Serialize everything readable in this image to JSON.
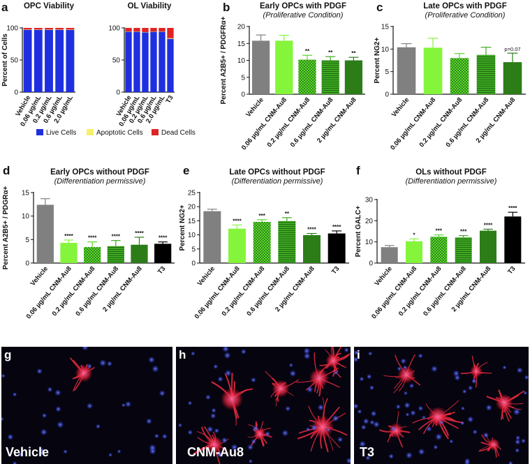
{
  "panels": {
    "a": {
      "letter": "a",
      "legend": [
        {
          "label": "Live Cells",
          "color": "#1f2fe0"
        },
        {
          "label": "Apoptotic Cells",
          "color": "#f7f06a"
        },
        {
          "label": "Dead Cells",
          "color": "#e02424"
        }
      ]
    },
    "b": {
      "letter": "b"
    },
    "c": {
      "letter": "c"
    },
    "d": {
      "letter": "d"
    },
    "e": {
      "letter": "e"
    },
    "f": {
      "letter": "f"
    }
  },
  "chart_data": [
    {
      "id": "a1",
      "type": "bar",
      "stacked": true,
      "title": "OPC Viability",
      "ylabel": "Percent of Cells",
      "ylim": [
        0,
        100
      ],
      "yticks": [
        0,
        50,
        100
      ],
      "categories": [
        "Vehicle",
        "0.06 µg/mL",
        "0.2 µg/mL",
        "0.6 µg/mL",
        "2.0 µg/mL"
      ],
      "series": [
        {
          "name": "Live Cells",
          "values": [
            97,
            97,
            97,
            97,
            97
          ]
        },
        {
          "name": "Apoptotic Cells",
          "values": [
            0.5,
            0.5,
            0.5,
            0.5,
            0.5
          ]
        },
        {
          "name": "Dead Cells",
          "values": [
            2.5,
            2.5,
            2.5,
            2.5,
            2.5
          ]
        }
      ]
    },
    {
      "id": "a2",
      "type": "bar",
      "stacked": true,
      "title": "OL Viability",
      "ylabel": "",
      "ylim": [
        0,
        100
      ],
      "yticks": [
        0,
        50,
        100
      ],
      "categories": [
        "Vehicle",
        "0.06 µg/mL",
        "0.2 µg/mL",
        "0.6 µg/mL",
        "2.0 µg/mL",
        "T3"
      ],
      "series": [
        {
          "name": "Live Cells",
          "values": [
            94,
            94,
            93,
            94,
            94,
            83
          ]
        },
        {
          "name": "Apoptotic Cells",
          "values": [
            0.5,
            0.5,
            0.5,
            0.5,
            0.5,
            1
          ]
        },
        {
          "name": "Dead Cells",
          "values": [
            5.5,
            5.5,
            6.5,
            5.5,
            5.5,
            16
          ]
        }
      ]
    },
    {
      "id": "b",
      "type": "bar",
      "title": "Early OPCs with PDGF",
      "subtitle": "(Proliferative Condition)",
      "ylabel": "Percent A2B5+ / PDGFRα+",
      "ylim": [
        0,
        20
      ],
      "yticks": [
        0,
        5,
        10,
        15,
        20
      ],
      "categories": [
        "Vehicle",
        "0.06 µg/mL CNM-Au8",
        "0.2 µg/mL CNM-Au8",
        "0.6 µg/mL CNM-Au8",
        "2 µg/mL CNM-Au8"
      ],
      "values": [
        15.8,
        15.8,
        10.2,
        10.0,
        10.0
      ],
      "errors": [
        1.7,
        1.6,
        1.3,
        1.1,
        0.9
      ],
      "significance": [
        "",
        "",
        "**",
        "**",
        "**"
      ],
      "colors": [
        "#808080",
        "#84f53a",
        "#5bd62b",
        "#3ea821",
        "#2c7d18"
      ],
      "patterns": [
        "solid",
        "solid",
        "check",
        "hstripe",
        "solid"
      ]
    },
    {
      "id": "c",
      "type": "bar",
      "title": "Late OPCs with PDGF",
      "subtitle": "(Proliferative Condition)",
      "ylabel": "Percent NG2+",
      "ylim": [
        0,
        15
      ],
      "yticks": [
        0,
        5,
        10,
        15
      ],
      "categories": [
        "Vehicle",
        "0.06 µg/mL CNM-Au8",
        "0.2 µg/mL CNM-Au8",
        "0.6 µg/mL CNM-Au8",
        "2 µg/mL CNM-Au8"
      ],
      "values": [
        10.4,
        10.3,
        8.0,
        8.7,
        7.1
      ],
      "errors": [
        0.8,
        2.1,
        1.0,
        1.7,
        2.0
      ],
      "significance": [
        "",
        "",
        "",
        "",
        "p=0.07"
      ],
      "colors": [
        "#808080",
        "#84f53a",
        "#5bd62b",
        "#3ea821",
        "#2c7d18"
      ],
      "patterns": [
        "solid",
        "solid",
        "check",
        "hstripe",
        "solid"
      ]
    },
    {
      "id": "d",
      "type": "bar",
      "title": "Early OPCs without PDGF",
      "subtitle": "(Differentiation permissive)",
      "ylabel": "Percent A2B5+ / PDGRα+",
      "ylim": [
        0,
        15
      ],
      "yticks": [
        0,
        5,
        10,
        15
      ],
      "categories": [
        "Vehicle",
        "0.06 µg/mL CNM-Au8",
        "0.2 µg/mL CNM-Au8",
        "0.6 µg/mL CNM-Au8",
        "2 µg/mL CNM-Au8",
        "T3"
      ],
      "values": [
        12.4,
        4.3,
        3.4,
        3.6,
        3.9,
        4.1
      ],
      "errors": [
        1.3,
        0.6,
        1.1,
        1.2,
        1.6,
        0.4
      ],
      "significance": [
        "",
        "****",
        "****",
        "****",
        "****",
        "****"
      ],
      "colors": [
        "#808080",
        "#84f53a",
        "#5bd62b",
        "#3ea821",
        "#2c7d18",
        "#000000"
      ],
      "patterns": [
        "solid",
        "solid",
        "check",
        "hstripe",
        "solid",
        "solid"
      ]
    },
    {
      "id": "e",
      "type": "bar",
      "title": "Late OPCs without PDGF",
      "subtitle": "(Differentiation permissive)",
      "ylabel": "Percent NG2+",
      "ylim": [
        0,
        25
      ],
      "yticks": [
        0,
        5,
        10,
        15,
        20,
        25
      ],
      "categories": [
        "Vehicle",
        "0.06 µg/mL CNM-Au8",
        "0.2 µg/mL CNM-Au8",
        "0.6 µg/mL CNM-Au8",
        "2 µg/mL CNM-Au8",
        "T3"
      ],
      "values": [
        18.4,
        12.2,
        14.6,
        14.9,
        9.9,
        10.5
      ],
      "errors": [
        0.7,
        1.3,
        0.8,
        1.2,
        0.6,
        0.9
      ],
      "significance": [
        "",
        "****",
        "***",
        "**",
        "****",
        "****"
      ],
      "colors": [
        "#808080",
        "#84f53a",
        "#5bd62b",
        "#3ea821",
        "#2c7d18",
        "#000000"
      ],
      "patterns": [
        "solid",
        "solid",
        "check",
        "hstripe",
        "solid",
        "solid"
      ]
    },
    {
      "id": "f",
      "type": "bar",
      "title": "OLs without PDGF",
      "subtitle": "(Differentiation permissive)",
      "ylabel": "Percent GALC+",
      "ylim": [
        0,
        30
      ],
      "yticks": [
        0,
        10,
        20,
        30
      ],
      "categories": [
        "Vehicle",
        "0.06 µg/mL CNM-Au8",
        "0.2 µg/mL CNM-Au8",
        "0.6 µg/mL CNM-Au8",
        "2 µg/mL CNM-Au8",
        "T3"
      ],
      "values": [
        7.5,
        10.3,
        12.4,
        12.1,
        15.3,
        22.0
      ],
      "errors": [
        0.8,
        1.1,
        0.9,
        0.9,
        0.7,
        2.0
      ],
      "significance": [
        "",
        "*",
        "***",
        "***",
        "****",
        "****"
      ],
      "colors": [
        "#808080",
        "#84f53a",
        "#5bd62b",
        "#3ea821",
        "#2c7d18",
        "#000000"
      ],
      "patterns": [
        "solid",
        "solid",
        "check",
        "hstripe",
        "solid",
        "solid"
      ]
    }
  ],
  "micrographs": [
    {
      "letter": "g",
      "label": "Vehicle",
      "density": "low"
    },
    {
      "letter": "h",
      "label": "CNM-Au8",
      "density": "high"
    },
    {
      "letter": "i",
      "label": "T3",
      "density": "high"
    }
  ]
}
